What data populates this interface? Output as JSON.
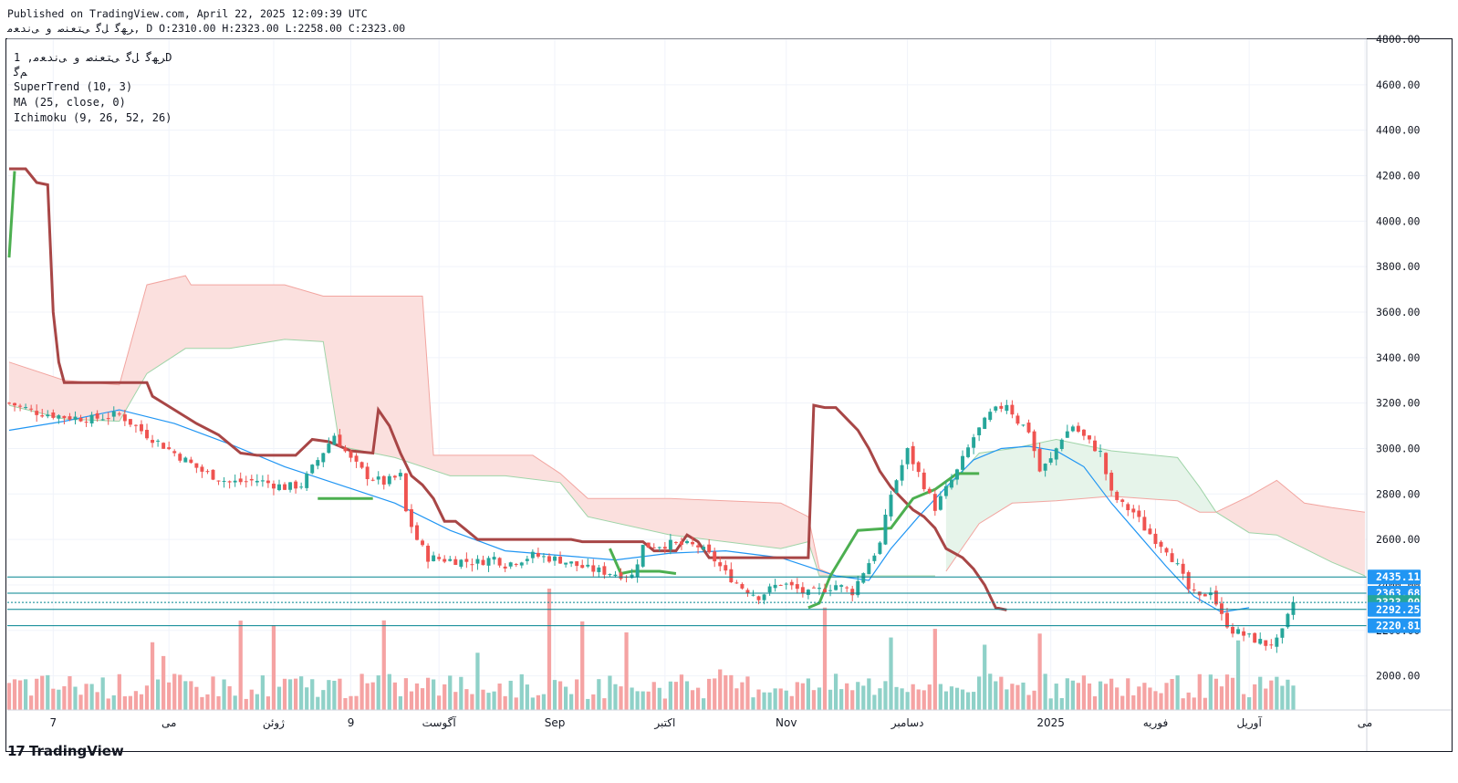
{
  "header": {
    "published": "Published on TradingView.com, April 22, 2025 12:09:39 UTC",
    "ohlc": "ﺮﻬﮔ ﻞﮔ ﯽﺘﻌﻨﺻ و ﯽﻧﺪﻌﻣ, D O:2310.00 H:2323.00 L:2258.00 C:2323.00"
  },
  "legend": {
    "symbol_line": "ﺮﻬﮔ ﻞﮔ ﯽﺘﻌﻨﺻ و ﯽﻧﺪﻌﻣ, 1D",
    "symbol_sub": "ﻢﮔ",
    "indicators": [
      "SuperTrend (10, 3)",
      "MA (25, close, 0)",
      "Ichimoku (9, 26, 52, 26)"
    ]
  },
  "brand": {
    "name": "TradingView",
    "logo": "17"
  },
  "colors": {
    "up": "#26a69a",
    "down": "#ef5350",
    "up_vol": "#8fd1c8",
    "down_vol": "#f5a3a3",
    "supertrend_down": "#a84646",
    "supertrend_up": "#4caf50",
    "ma": "#2196f3",
    "cloud_red": "#fbe0de",
    "cloud_green": "#e6f4ea",
    "level_line": "#00838f",
    "price_tag": "#2196f3",
    "last_tag": "#26a69a"
  },
  "chart_data": {
    "type": "candlestick",
    "period": "1D",
    "y_axis": {
      "range": [
        1850,
        4800
      ],
      "ticks": [
        2000,
        2200,
        2400,
        2600,
        2800,
        3000,
        3200,
        3400,
        3600,
        3800,
        4000,
        4200,
        4400,
        4600,
        4800
      ],
      "labels": [
        "2000.00",
        "2200.00",
        "2400.00",
        "2600.00",
        "2800.00",
        "3000.00",
        "3200.00",
        "3400.00",
        "3600.00",
        "3800.00",
        "4000.00",
        "4200.00",
        "4400.00",
        "4600.00",
        "4800.00"
      ]
    },
    "x_axis": {
      "count": 240,
      "labels": [
        {
          "i": 8,
          "text": "7"
        },
        {
          "i": 29,
          "text": "می"
        },
        {
          "i": 48,
          "text": "ژوئن"
        },
        {
          "i": 62,
          "text": "9"
        },
        {
          "i": 78,
          "text": "آگوست"
        },
        {
          "i": 99,
          "text": "Sep"
        },
        {
          "i": 119,
          "text": "اکتبر"
        },
        {
          "i": 141,
          "text": "Nov"
        },
        {
          "i": 163,
          "text": "دسامبر"
        },
        {
          "i": 189,
          "text": "2025"
        },
        {
          "i": 208,
          "text": "فوریه"
        },
        {
          "i": 225,
          "text": "آوریل"
        },
        {
          "i": 246,
          "text": "می"
        }
      ]
    },
    "levels": [
      {
        "value": 2435.11,
        "label": "2435.11",
        "style": "solid"
      },
      {
        "value": 2363.68,
        "label": "2363.68",
        "style": "solid"
      },
      {
        "value": 2323.0,
        "label": "2323.00",
        "style": "dotted",
        "last": true
      },
      {
        "value": 2292.25,
        "label": "2292.25",
        "style": "solid"
      },
      {
        "value": 2220.81,
        "label": "2220.81",
        "style": "solid"
      }
    ],
    "anchors": [
      [
        0,
        3200
      ],
      [
        5,
        3160
      ],
      [
        10,
        3140
      ],
      [
        15,
        3130
      ],
      [
        20,
        3150
      ],
      [
        25,
        3060
      ],
      [
        30,
        2980
      ],
      [
        35,
        2900
      ],
      [
        40,
        2850
      ],
      [
        45,
        2860
      ],
      [
        50,
        2830
      ],
      [
        53,
        2840
      ],
      [
        56,
        2950
      ],
      [
        59,
        3060
      ],
      [
        62,
        2950
      ],
      [
        65,
        2880
      ],
      [
        68,
        2850
      ],
      [
        71,
        2880
      ],
      [
        72,
        2720
      ],
      [
        74,
        2600
      ],
      [
        76,
        2520
      ],
      [
        80,
        2510
      ],
      [
        85,
        2500
      ],
      [
        88,
        2520
      ],
      [
        90,
        2490
      ],
      [
        95,
        2530
      ],
      [
        100,
        2510
      ],
      [
        105,
        2470
      ],
      [
        110,
        2450
      ],
      [
        113,
        2440
      ],
      [
        115,
        2570
      ],
      [
        120,
        2580
      ],
      [
        125,
        2570
      ],
      [
        128,
        2510
      ],
      [
        130,
        2450
      ],
      [
        133,
        2390
      ],
      [
        136,
        2350
      ],
      [
        140,
        2410
      ],
      [
        145,
        2360
      ],
      [
        150,
        2400
      ],
      [
        153,
        2370
      ],
      [
        155,
        2460
      ],
      [
        158,
        2580
      ],
      [
        160,
        2800
      ],
      [
        163,
        2990
      ],
      [
        165,
        2890
      ],
      [
        168,
        2740
      ],
      [
        172,
        2900
      ],
      [
        175,
        3050
      ],
      [
        178,
        3150
      ],
      [
        181,
        3200
      ],
      [
        183,
        3120
      ],
      [
        185,
        3080
      ],
      [
        187,
        2900
      ],
      [
        189,
        2950
      ],
      [
        191,
        3050
      ],
      [
        193,
        3100
      ],
      [
        195,
        3050
      ],
      [
        198,
        2980
      ],
      [
        200,
        2800
      ],
      [
        202,
        2750
      ],
      [
        204,
        2720
      ],
      [
        206,
        2650
      ],
      [
        208,
        2600
      ],
      [
        210,
        2560
      ],
      [
        212,
        2480
      ],
      [
        214,
        2380
      ],
      [
        216,
        2340
      ],
      [
        218,
        2380
      ],
      [
        220,
        2260
      ],
      [
        222,
        2200
      ],
      [
        224,
        2180
      ],
      [
        226,
        2160
      ],
      [
        228,
        2140
      ],
      [
        230,
        2150
      ],
      [
        231,
        2190
      ],
      [
        233,
        2323
      ]
    ],
    "supertrend": {
      "down": [
        [
          0,
          4230
        ],
        [
          3,
          4230
        ],
        [
          5,
          4170
        ],
        [
          7,
          4160
        ],
        [
          8,
          3600
        ],
        [
          9,
          3380
        ],
        [
          10,
          3290
        ],
        [
          25,
          3290
        ],
        [
          26,
          3230
        ],
        [
          28,
          3200
        ],
        [
          30,
          3170
        ],
        [
          34,
          3110
        ],
        [
          38,
          3060
        ],
        [
          42,
          2980
        ],
        [
          45,
          2970
        ],
        [
          52,
          2970
        ],
        [
          55,
          3040
        ],
        [
          58,
          3030
        ],
        [
          60,
          3010
        ],
        [
          62,
          2990
        ],
        [
          66,
          2980
        ],
        [
          67,
          3170
        ],
        [
          69,
          3100
        ],
        [
          71,
          2980
        ],
        [
          73,
          2880
        ],
        [
          75,
          2840
        ],
        [
          77,
          2780
        ],
        [
          79,
          2680
        ],
        [
          81,
          2680
        ],
        [
          85,
          2600
        ],
        [
          102,
          2600
        ],
        [
          104,
          2590
        ],
        [
          115,
          2590
        ],
        [
          117,
          2550
        ],
        [
          121,
          2550
        ],
        [
          123,
          2620
        ],
        [
          125,
          2590
        ],
        [
          127,
          2520
        ],
        [
          145,
          2520
        ],
        [
          146,
          3190
        ],
        [
          148,
          3180
        ],
        [
          150,
          3180
        ],
        [
          152,
          3130
        ],
        [
          154,
          3080
        ],
        [
          156,
          3000
        ],
        [
          158,
          2900
        ],
        [
          160,
          2830
        ],
        [
          162,
          2780
        ],
        [
          164,
          2730
        ],
        [
          166,
          2700
        ],
        [
          168,
          2650
        ],
        [
          170,
          2560
        ],
        [
          173,
          2520
        ],
        [
          175,
          2470
        ],
        [
          177,
          2400
        ],
        [
          179,
          2300
        ],
        [
          181,
          2290
        ]
      ],
      "up": [
        [
          0,
          3840
        ],
        [
          1,
          4220
        ]
      ],
      "up_segments": [
        [
          [
            56,
            2780
          ],
          [
            66,
            2780
          ]
        ],
        [
          [
            109,
            2560
          ],
          [
            111,
            2450
          ],
          [
            113,
            2460
          ],
          [
            118,
            2460
          ],
          [
            121,
            2450
          ]
        ],
        [
          [
            145,
            2300
          ],
          [
            147,
            2320
          ],
          [
            149,
            2440
          ],
          [
            152,
            2560
          ],
          [
            154,
            2640
          ],
          [
            160,
            2650
          ],
          [
            164,
            2780
          ],
          [
            168,
            2820
          ],
          [
            172,
            2890
          ],
          [
            176,
            2890
          ]
        ]
      ]
    },
    "ma25": [
      [
        0,
        3080
      ],
      [
        10,
        3120
      ],
      [
        20,
        3170
      ],
      [
        30,
        3110
      ],
      [
        40,
        3020
      ],
      [
        50,
        2920
      ],
      [
        60,
        2840
      ],
      [
        70,
        2760
      ],
      [
        80,
        2640
      ],
      [
        90,
        2550
      ],
      [
        100,
        2530
      ],
      [
        110,
        2510
      ],
      [
        120,
        2540
      ],
      [
        130,
        2550
      ],
      [
        140,
        2520
      ],
      [
        150,
        2440
      ],
      [
        156,
        2420
      ],
      [
        160,
        2560
      ],
      [
        165,
        2700
      ],
      [
        170,
        2830
      ],
      [
        175,
        2950
      ],
      [
        180,
        3000
      ],
      [
        185,
        3010
      ],
      [
        190,
        2990
      ],
      [
        195,
        2920
      ],
      [
        200,
        2760
      ],
      [
        205,
        2620
      ],
      [
        210,
        2480
      ],
      [
        215,
        2350
      ],
      [
        220,
        2280
      ],
      [
        225,
        2300
      ]
    ],
    "cloud": {
      "red_upper": [
        [
          0,
          3380
        ],
        [
          10,
          3300
        ],
        [
          20,
          3280
        ],
        [
          25,
          3720
        ],
        [
          32,
          3760
        ],
        [
          33,
          3720
        ],
        [
          50,
          3720
        ],
        [
          57,
          3670
        ],
        [
          75,
          3670
        ],
        [
          77,
          2970
        ],
        [
          95,
          2970
        ],
        [
          100,
          2890
        ],
        [
          105,
          2780
        ],
        [
          120,
          2780
        ],
        [
          140,
          2760
        ],
        [
          145,
          2700
        ],
        [
          147,
          2470
        ],
        [
          150,
          2440
        ],
        [
          168,
          2440
        ]
      ],
      "red_lower": [
        [
          0,
          3190
        ],
        [
          10,
          3130
        ],
        [
          20,
          3120
        ],
        [
          25,
          3330
        ],
        [
          32,
          3440
        ],
        [
          40,
          3440
        ],
        [
          50,
          3480
        ],
        [
          57,
          3470
        ],
        [
          60,
          3010
        ],
        [
          70,
          2960
        ],
        [
          80,
          2880
        ],
        [
          90,
          2880
        ],
        [
          100,
          2850
        ],
        [
          105,
          2700
        ],
        [
          120,
          2620
        ],
        [
          140,
          2560
        ],
        [
          145,
          2590
        ],
        [
          147,
          2440
        ],
        [
          150,
          2440
        ],
        [
          168,
          2440
        ]
      ],
      "green_upper": [
        [
          170,
          2820
        ],
        [
          176,
          2980
        ],
        [
          182,
          3000
        ],
        [
          190,
          3040
        ],
        [
          200,
          2990
        ],
        [
          212,
          2960
        ],
        [
          216,
          2830
        ],
        [
          219,
          2720
        ]
      ],
      "green_lower": [
        [
          170,
          2460
        ],
        [
          176,
          2670
        ],
        [
          182,
          2760
        ],
        [
          190,
          2770
        ],
        [
          200,
          2790
        ],
        [
          212,
          2770
        ],
        [
          216,
          2720
        ],
        [
          219,
          2720
        ]
      ],
      "red2_upper": [
        [
          219,
          2720
        ],
        [
          225,
          2790
        ],
        [
          230,
          2860
        ],
        [
          235,
          2760
        ],
        [
          240,
          2740
        ],
        [
          246,
          2720
        ]
      ],
      "red2_lower": [
        [
          219,
          2720
        ],
        [
          225,
          2630
        ],
        [
          230,
          2620
        ],
        [
          235,
          2560
        ],
        [
          240,
          2500
        ],
        [
          246,
          2440
        ]
      ]
    }
  }
}
